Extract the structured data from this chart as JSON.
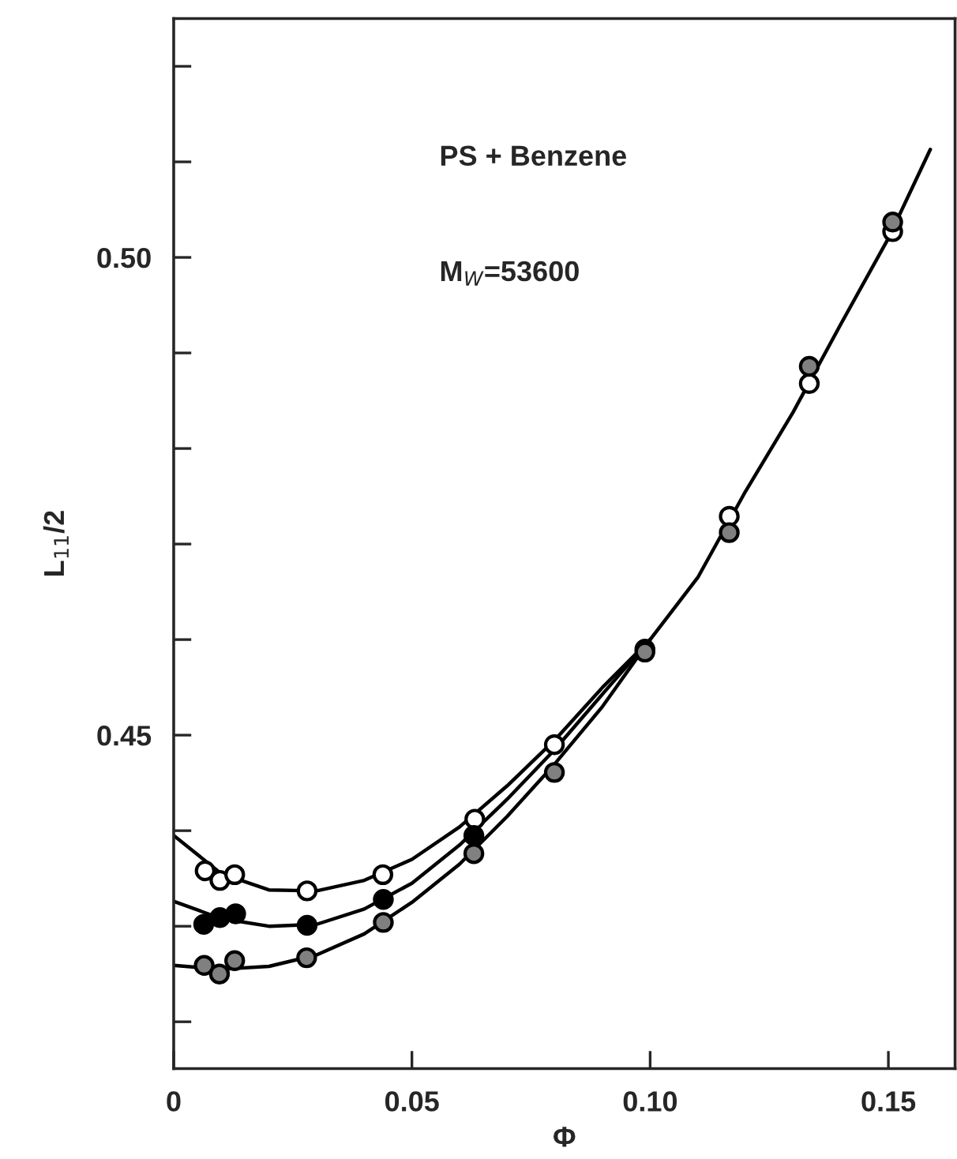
{
  "chart_data": {
    "type": "scatter",
    "xlabel": "Φ",
    "ylabel": "L$_{11}$/2",
    "annotations": [
      "PS + Benzene",
      "M$_{W}$=53600"
    ],
    "xlim": [
      0,
      0.164
    ],
    "ylim": [
      0.4151,
      0.525
    ],
    "xticks": [
      0,
      0.05,
      {
        "value": 0.1,
        "label": "0.10"
      },
      0.15
    ],
    "yticks": [
      {
        "value": 0.42,
        "label": null
      },
      {
        "value": 0.43,
        "label": null
      },
      {
        "value": 0.44,
        "label": null
      },
      {
        "value": 0.45,
        "label": "0.45"
      },
      {
        "value": 0.46,
        "label": null
      },
      {
        "value": 0.47,
        "label": null
      },
      {
        "value": 0.48,
        "label": null
      },
      {
        "value": 0.49,
        "label": null
      },
      {
        "value": 0.5,
        "label": "0.50"
      },
      {
        "value": 0.51,
        "label": null
      },
      {
        "value": 0.52,
        "label": null
      }
    ],
    "grid": false,
    "series": [
      {
        "type": "line",
        "color": "#000000",
        "line_style": "solid",
        "x": [
          0,
          0.01,
          0.02,
          0.03,
          0.04,
          0.05,
          0.06,
          0.07,
          0.08,
          0.09,
          0.1,
          0.11,
          0.12,
          0.13,
          0.14,
          0.15,
          0.1588
        ],
        "values": [
          0.4395,
          0.4355,
          0.4338,
          0.4337,
          0.4348,
          0.437,
          0.4404,
          0.4447,
          0.4495,
          0.455,
          0.46,
          0.4665,
          0.4755,
          0.4838,
          0.493,
          0.502,
          0.5113
        ]
      },
      {
        "type": "line",
        "color": "#000000",
        "line_style": "solid",
        "x": [
          0,
          0.01,
          0.02,
          0.03,
          0.04,
          0.05,
          0.06,
          0.07,
          0.08,
          0.09,
          0.1
        ],
        "values": [
          0.4326,
          0.4308,
          0.43,
          0.4302,
          0.4318,
          0.4345,
          0.4385,
          0.4433,
          0.4485,
          0.4543,
          0.46
        ]
      },
      {
        "type": "line",
        "color": "#000000",
        "line_style": "solid",
        "x": [
          0,
          0.01,
          0.02,
          0.03,
          0.04,
          0.05,
          0.06,
          0.07,
          0.08,
          0.09,
          0.1
        ],
        "values": [
          0.4259,
          0.4255,
          0.4258,
          0.427,
          0.4292,
          0.4325,
          0.4365,
          0.4415,
          0.447,
          0.453,
          0.46
        ]
      },
      {
        "color": "#ffffff",
        "marker": "circle",
        "x": [
          0.0066,
          0.0097,
          0.0128,
          0.028,
          0.0439,
          0.0632,
          0.0799,
          0.0989,
          0.1166,
          0.1334,
          0.1509
        ],
        "values": [
          0.4358,
          0.4348,
          0.4354,
          0.4337,
          0.4354,
          0.4412,
          0.449,
          0.459,
          0.4729,
          0.4868,
          0.5027
        ]
      },
      {
        "color": "#000000",
        "marker": "circle",
        "x": [
          0.0063,
          0.0097,
          0.013,
          0.028,
          0.044,
          0.063
        ],
        "values": [
          0.4302,
          0.4309,
          0.4313,
          0.4301,
          0.4328,
          0.4395
        ]
      },
      {
        "color": "#808080",
        "marker": "circle",
        "x": [
          0.0064,
          0.0096,
          0.0128,
          0.0279,
          0.044,
          0.063,
          0.0799,
          0.0989,
          0.1166,
          0.1334,
          0.1509
        ],
        "values": [
          0.4259,
          0.425,
          0.4264,
          0.4267,
          0.4304,
          0.4376,
          0.4461,
          0.4587,
          0.4712,
          0.4886,
          0.5037
        ]
      }
    ]
  }
}
